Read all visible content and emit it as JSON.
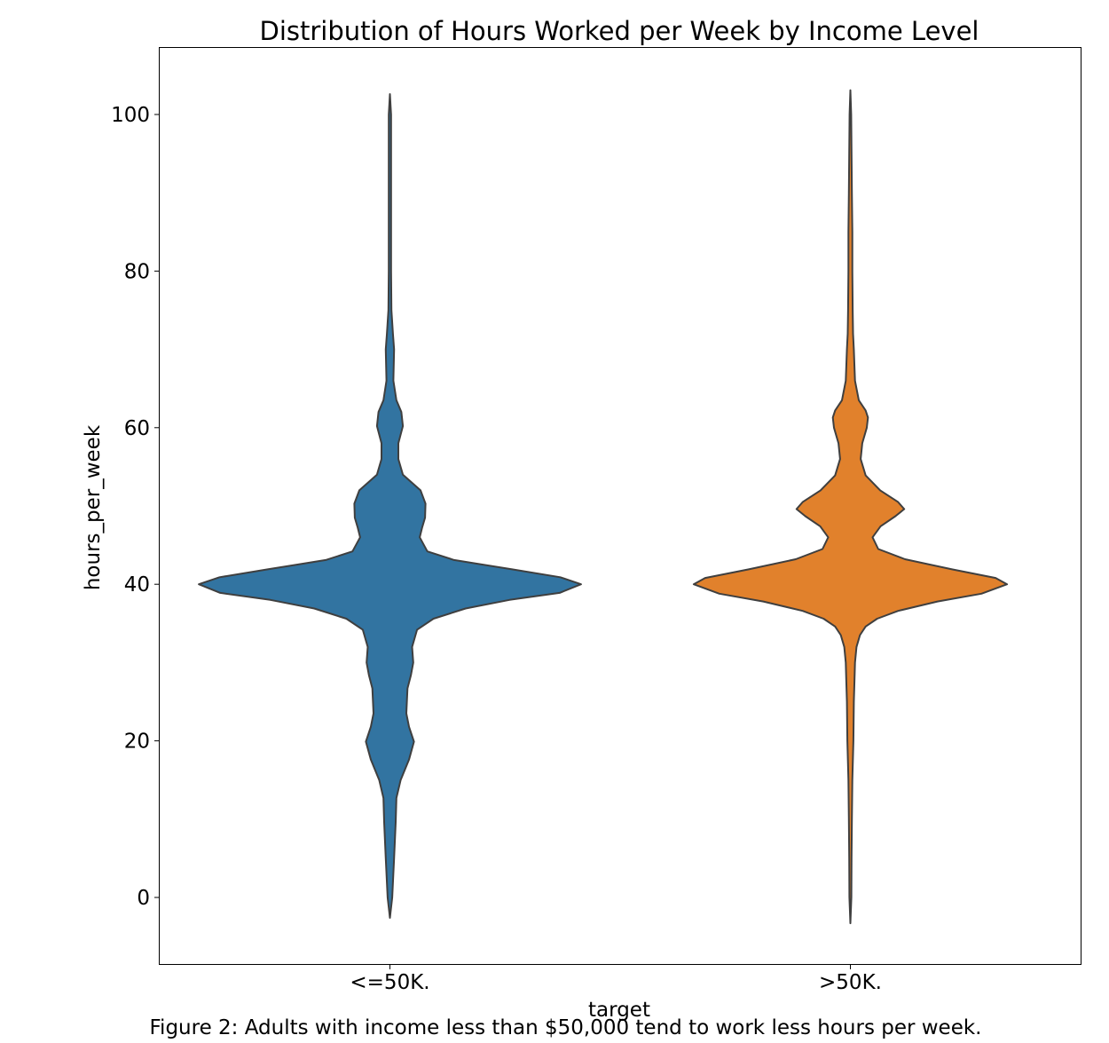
{
  "caption": "Figure 2: Adults with income less than $50,000 tend to work less hours per week.",
  "chart_data": {
    "type": "violin",
    "title": "Distribution of Hours Worked per Week by Income Level",
    "xlabel": "target",
    "ylabel": "hours_per_week",
    "categories": [
      "<=50K.",
      ">50K."
    ],
    "ylim": [
      -8.5,
      108.5
    ],
    "yticks": [
      0,
      20,
      40,
      60,
      80,
      100
    ],
    "grid": false,
    "colors": [
      "#3274a1",
      "#e1812c"
    ],
    "outline_color": "#3f3f3f",
    "series": [
      {
        "category": "<=50K.",
        "profile": [
          [
            -2.6,
            0.0
          ],
          [
            0,
            0.006
          ],
          [
            5,
            0.011
          ],
          [
            9.6,
            0.015
          ],
          [
            12.7,
            0.017
          ],
          [
            15,
            0.028
          ],
          [
            17.6,
            0.05
          ],
          [
            19.9,
            0.063
          ],
          [
            21.8,
            0.05
          ],
          [
            23.5,
            0.043
          ],
          [
            26.7,
            0.046
          ],
          [
            28.4,
            0.055
          ],
          [
            30,
            0.061
          ],
          [
            32,
            0.058
          ],
          [
            34.2,
            0.071
          ],
          [
            35.6,
            0.114
          ],
          [
            36.9,
            0.198
          ],
          [
            38,
            0.313
          ],
          [
            38.9,
            0.444
          ],
          [
            40,
            0.5
          ],
          [
            40.9,
            0.446
          ],
          [
            41.9,
            0.32
          ],
          [
            43.1,
            0.168
          ],
          [
            44.2,
            0.098
          ],
          [
            46,
            0.078
          ],
          [
            47.2,
            0.084
          ],
          [
            48.5,
            0.092
          ],
          [
            50.3,
            0.093
          ],
          [
            52,
            0.08
          ],
          [
            54,
            0.034
          ],
          [
            56,
            0.022
          ],
          [
            58,
            0.022
          ],
          [
            60.2,
            0.034
          ],
          [
            62,
            0.03
          ],
          [
            63.5,
            0.017
          ],
          [
            66,
            0.009
          ],
          [
            70,
            0.011
          ],
          [
            72,
            0.008
          ],
          [
            75,
            0.004
          ],
          [
            80,
            0.003
          ],
          [
            85,
            0.003
          ],
          [
            90,
            0.003
          ],
          [
            95,
            0.003
          ],
          [
            100,
            0.003
          ],
          [
            102.6,
            0.0
          ]
        ]
      },
      {
        "category": ">50K.",
        "profile": [
          [
            -3.3,
            0.0
          ],
          [
            0,
            0.0025
          ],
          [
            5,
            0.003
          ],
          [
            10,
            0.004
          ],
          [
            15,
            0.005
          ],
          [
            20,
            0.008
          ],
          [
            25,
            0.009
          ],
          [
            28,
            0.011
          ],
          [
            30,
            0.012
          ],
          [
            32,
            0.016
          ],
          [
            33.5,
            0.025
          ],
          [
            34.6,
            0.04
          ],
          [
            35.6,
            0.07
          ],
          [
            36.6,
            0.125
          ],
          [
            37.8,
            0.228
          ],
          [
            38.8,
            0.343
          ],
          [
            40,
            0.41
          ],
          [
            40.8,
            0.38
          ],
          [
            41.9,
            0.266
          ],
          [
            43.2,
            0.143
          ],
          [
            44.5,
            0.073
          ],
          [
            46,
            0.058
          ],
          [
            47.4,
            0.079
          ],
          [
            48.7,
            0.118
          ],
          [
            49.6,
            0.141
          ],
          [
            50.5,
            0.125
          ],
          [
            52,
            0.078
          ],
          [
            53.9,
            0.04
          ],
          [
            56,
            0.027
          ],
          [
            58,
            0.031
          ],
          [
            60,
            0.043
          ],
          [
            61.3,
            0.046
          ],
          [
            62.2,
            0.04
          ],
          [
            63.5,
            0.022
          ],
          [
            66,
            0.012
          ],
          [
            70,
            0.009
          ],
          [
            72,
            0.007
          ],
          [
            75,
            0.006
          ],
          [
            80,
            0.005
          ],
          [
            85,
            0.005
          ],
          [
            90,
            0.004
          ],
          [
            95,
            0.003
          ],
          [
            100,
            0.002
          ],
          [
            103.1,
            0.0
          ]
        ]
      }
    ]
  }
}
